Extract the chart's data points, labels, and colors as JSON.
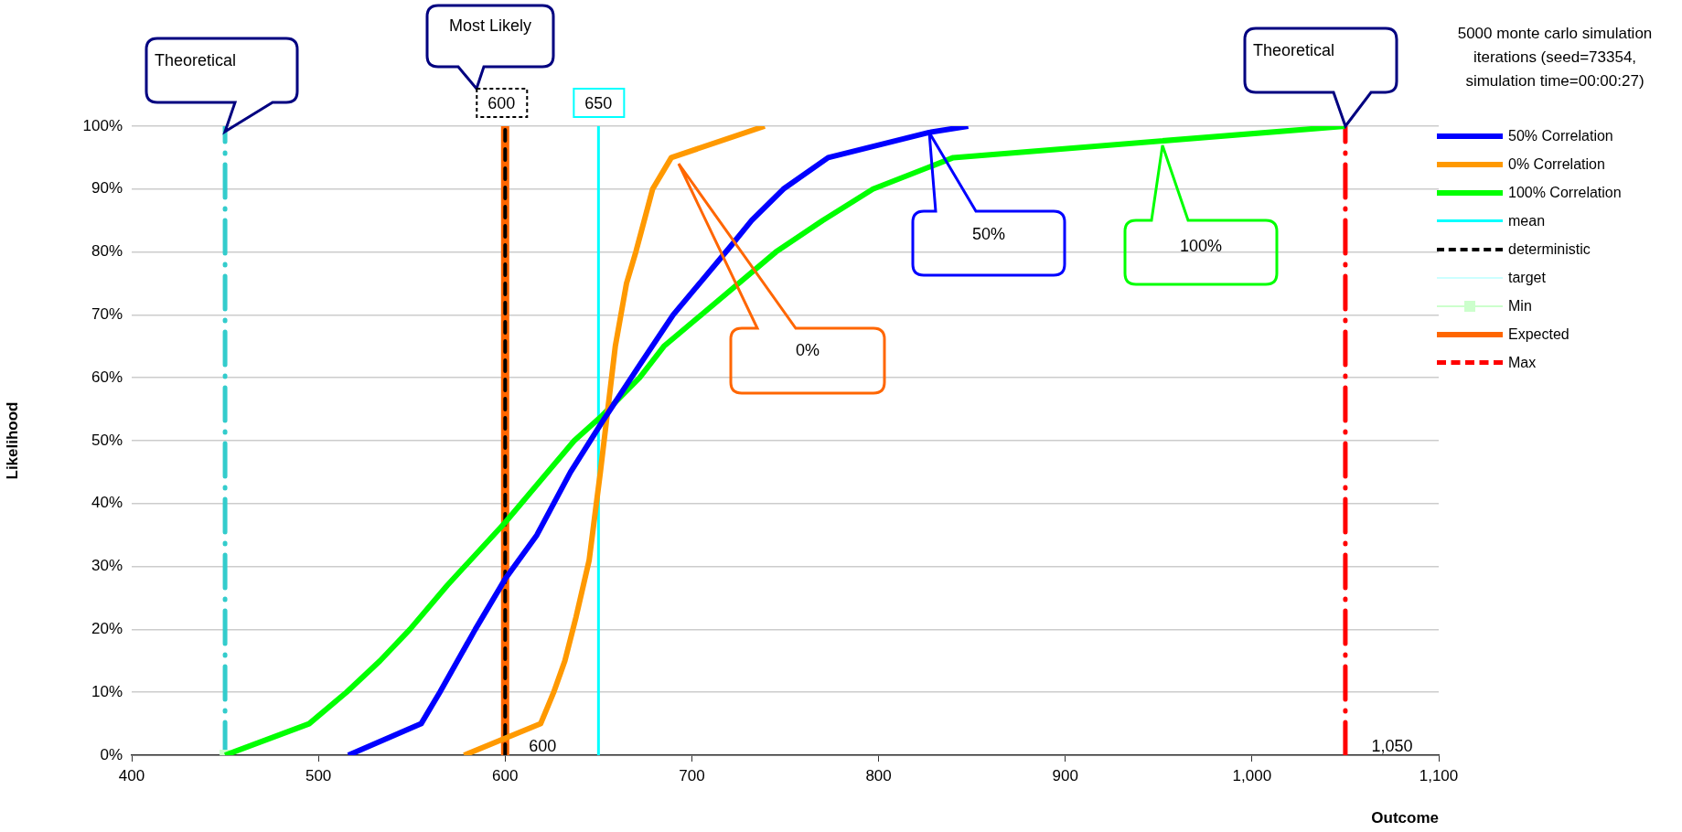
{
  "chart_data": {
    "type": "line",
    "title": "5000 monte carlo simulation iterations (seed=73354, simulation time=00:00:27)",
    "xlabel": "Outcome",
    "ylabel": "Likelihood",
    "xlim": [
      400,
      1100
    ],
    "xticks": [
      400,
      500,
      600,
      700,
      800,
      900,
      {
        "value": 1000,
        "label": "1,000"
      },
      {
        "value": 1100,
        "label": "1,100"
      }
    ],
    "ylim": [
      0,
      100
    ],
    "yticks": [
      {
        "value": 0,
        "label": "0%"
      },
      {
        "value": 10,
        "label": "10%"
      },
      {
        "value": 20,
        "label": "20%"
      },
      {
        "value": 30,
        "label": "30%"
      },
      {
        "value": 40,
        "label": "40%"
      },
      {
        "value": 50,
        "label": "50%"
      },
      {
        "value": 60,
        "label": "60%"
      },
      {
        "value": 70,
        "label": "70%"
      },
      {
        "value": 80,
        "label": "80%"
      },
      {
        "value": 90,
        "label": "90%"
      },
      {
        "value": 100,
        "label": "100%"
      }
    ],
    "grid": "y",
    "legend": "right",
    "marker": "none",
    "line_style": "solid",
    "series": [
      {
        "name": "50% Correlation",
        "color": "#0000ff",
        "x": [
          516,
          555,
          565,
          584,
          600,
          617,
          635,
          652,
          672,
          690,
          721,
          732,
          749,
          773,
          827,
          848
        ],
        "values": [
          0,
          5,
          10,
          20,
          28,
          35,
          45,
          53,
          62,
          70,
          81,
          85,
          90,
          95,
          99,
          100
        ]
      },
      {
        "name": "0% Correlation",
        "color": "#ff9900",
        "x": [
          578,
          619,
          626,
          632,
          638,
          645,
          651,
          655,
          659,
          665,
          670,
          679,
          689,
          739
        ],
        "values": [
          0,
          5,
          10,
          15,
          22,
          31,
          45,
          55,
          65,
          75,
          80,
          90,
          95,
          100
        ]
      },
      {
        "name": "100% Correlation",
        "color": "#00ff00",
        "x": [
          450,
          495,
          515,
          533,
          549,
          569,
          600,
          637,
          652,
          672,
          685,
          745,
          770,
          797,
          840,
          1050
        ],
        "values": [
          0,
          5,
          10,
          15,
          20,
          27,
          37,
          50,
          54,
          60,
          65,
          80,
          85,
          90,
          95,
          100
        ]
      },
      {
        "name": "mean",
        "color": "#00ffff",
        "x": [
          650,
          650
        ],
        "values": [
          0,
          100
        ]
      },
      {
        "name": "deterministic",
        "color": "#000000",
        "line_style": "dashed",
        "x": [
          600,
          600
        ],
        "values": [
          0,
          100
        ]
      },
      {
        "name": "target",
        "color": "#ccffff"
      },
      {
        "name": "Min",
        "color": "#ccffcc",
        "marker": "square",
        "x": [
          450
        ],
        "values": [
          0
        ]
      },
      {
        "name": "Expected",
        "color": "#ff6600",
        "x": [
          600,
          600
        ],
        "values": [
          0,
          100
        ]
      },
      {
        "name": "Max",
        "color": "#ff0000",
        "line_style": "dashed",
        "x": [
          1050,
          1050
        ],
        "values": [
          0,
          100
        ]
      },
      {
        "color": "#33cccc",
        "line_style": "dashed",
        "x": [
          450,
          450
        ],
        "values": [
          0,
          100
        ]
      }
    ],
    "annotations": [
      "Theoretical",
      "Most Likely",
      {
        "text": "600",
        "x": 600,
        "y": 100
      },
      {
        "text": "650",
        "x": 650,
        "y": 100
      },
      "0%",
      "50%",
      "100%",
      {
        "text": "600",
        "x": 600,
        "y": 0
      },
      {
        "text": "1,050",
        "x": 1050,
        "y": 0
      },
      "Theoretical"
    ]
  }
}
